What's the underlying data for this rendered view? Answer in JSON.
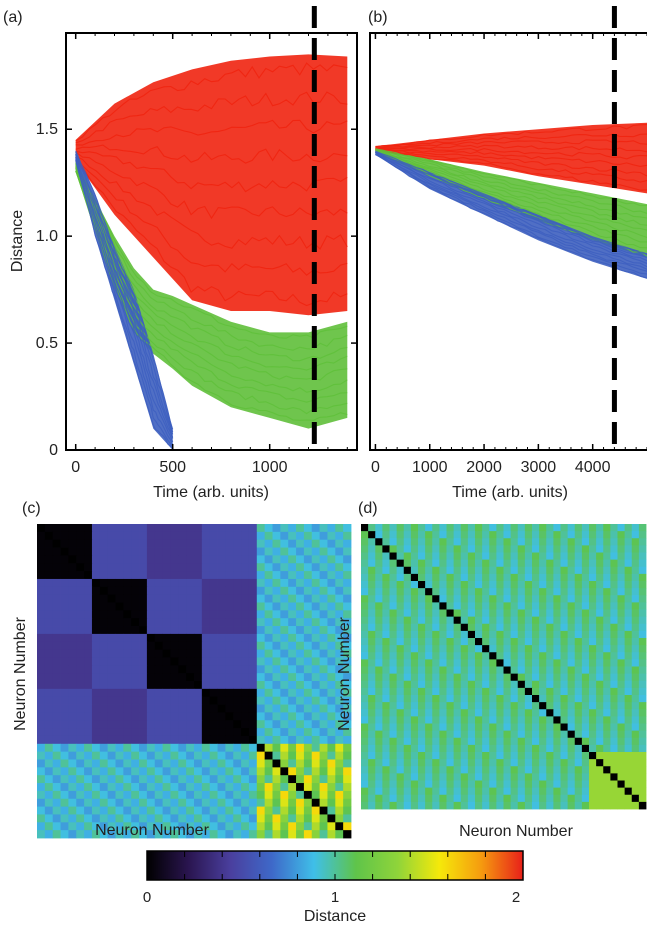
{
  "panels": {
    "a": {
      "label": "(a)"
    },
    "b": {
      "label": "(b)"
    },
    "c": {
      "label": "(c)"
    },
    "d": {
      "label": "(d)"
    }
  },
  "colors": {
    "red": "#f0230f",
    "green": "#5fbf3a",
    "blue": "#3d5fbf",
    "dashed_line": "#000000"
  },
  "chart_data": [
    {
      "type": "line",
      "panel": "a",
      "xlabel": "Time (arb. units)",
      "ylabel": "Distance",
      "xlim": [
        -50,
        1450
      ],
      "ylim": [
        0,
        1.95
      ],
      "x_ticks": [
        0,
        500,
        1000
      ],
      "x_tick_labels": [
        "0",
        "500",
        "1000"
      ],
      "y_ticks": [
        0,
        0.5,
        1.0,
        1.5
      ],
      "y_tick_labels": [
        "0",
        "0.5",
        "1.0",
        "1.5"
      ],
      "vline_x": 1230,
      "series": [
        {
          "color": "red",
          "x": [
            0,
            200,
            400,
            600,
            800,
            1000,
            1200,
            1400
          ],
          "band_upper": [
            1.45,
            1.62,
            1.72,
            1.78,
            1.82,
            1.84,
            1.85,
            1.84
          ],
          "band_lower": [
            1.35,
            1.1,
            0.9,
            0.7,
            0.65,
            0.65,
            0.63,
            0.65
          ]
        },
        {
          "color": "green",
          "x": [
            0,
            200,
            300,
            400,
            500,
            600,
            800,
            1000,
            1200,
            1400
          ],
          "band_upper": [
            1.35,
            1.0,
            0.85,
            0.75,
            0.72,
            0.68,
            0.6,
            0.55,
            0.55,
            0.6
          ],
          "band_lower": [
            1.3,
            0.75,
            0.55,
            0.45,
            0.38,
            0.3,
            0.2,
            0.15,
            0.1,
            0.15
          ]
        },
        {
          "color": "blue",
          "x": [
            0,
            100,
            200,
            300,
            400,
            500
          ],
          "band_upper": [
            1.4,
            1.2,
            0.95,
            0.75,
            0.45,
            0.1
          ],
          "band_lower": [
            1.35,
            1.0,
            0.7,
            0.4,
            0.1,
            0.0
          ]
        }
      ]
    },
    {
      "type": "line",
      "panel": "b",
      "xlabel": "Time (arb. units)",
      "ylabel": "",
      "xlim": [
        -100,
        5000
      ],
      "ylim": [
        0,
        1.95
      ],
      "x_ticks": [
        0,
        1000,
        2000,
        3000,
        4000
      ],
      "x_tick_labels": [
        "0",
        "1000",
        "2000",
        "3000",
        "4000"
      ],
      "vline_x": 4400,
      "series": [
        {
          "color": "red",
          "x": [
            0,
            1000,
            2000,
            3000,
            4000,
            5000
          ],
          "band_upper": [
            1.42,
            1.45,
            1.48,
            1.5,
            1.52,
            1.53
          ],
          "band_lower": [
            1.4,
            1.36,
            1.33,
            1.28,
            1.24,
            1.2
          ]
        },
        {
          "color": "green",
          "x": [
            0,
            1000,
            2000,
            3000,
            4000,
            5000
          ],
          "band_upper": [
            1.41,
            1.36,
            1.3,
            1.25,
            1.2,
            1.15
          ],
          "band_lower": [
            1.39,
            1.28,
            1.17,
            1.07,
            0.98,
            0.9
          ]
        },
        {
          "color": "blue",
          "x": [
            0,
            1000,
            2000,
            3000,
            4000,
            5000
          ],
          "band_upper": [
            1.4,
            1.3,
            1.2,
            1.1,
            1.0,
            0.92
          ],
          "band_lower": [
            1.38,
            1.22,
            1.1,
            0.98,
            0.88,
            0.8
          ]
        }
      ]
    },
    {
      "type": "heatmap",
      "panel": "c",
      "xlabel": "Neuron Number",
      "ylabel": "Neuron Number",
      "n": 40,
      "block_size": 7,
      "n_blocks": 4,
      "within_block": 0.02,
      "between_blocks": [
        [
          0,
          0.5,
          0.4,
          0.5
        ],
        [
          0.5,
          0,
          0.5,
          0.4
        ],
        [
          0.4,
          0.5,
          0,
          0.5
        ],
        [
          0.5,
          0.4,
          0.5,
          0
        ]
      ],
      "block_to_rest": 0.9,
      "rest_to_rest": 1.3
    },
    {
      "type": "heatmap",
      "panel": "d",
      "xlabel": "Neuron Number",
      "ylabel": "Neuron Number",
      "n": 40,
      "off_diagonal": 1.0,
      "diagonal": 0,
      "corner_start": 32,
      "corner_value": 1.35
    },
    {
      "type": "colorbar",
      "label": "Distance",
      "range": [
        0,
        2
      ],
      "tick_labels": [
        "0",
        "1",
        "2"
      ],
      "colormap": [
        "#000000",
        "#2a1550",
        "#4a3f9e",
        "#3e69c9",
        "#3fbfe8",
        "#5fc44a",
        "#8fd43a",
        "#f5e90a",
        "#f59b0f",
        "#e8201a"
      ]
    }
  ]
}
